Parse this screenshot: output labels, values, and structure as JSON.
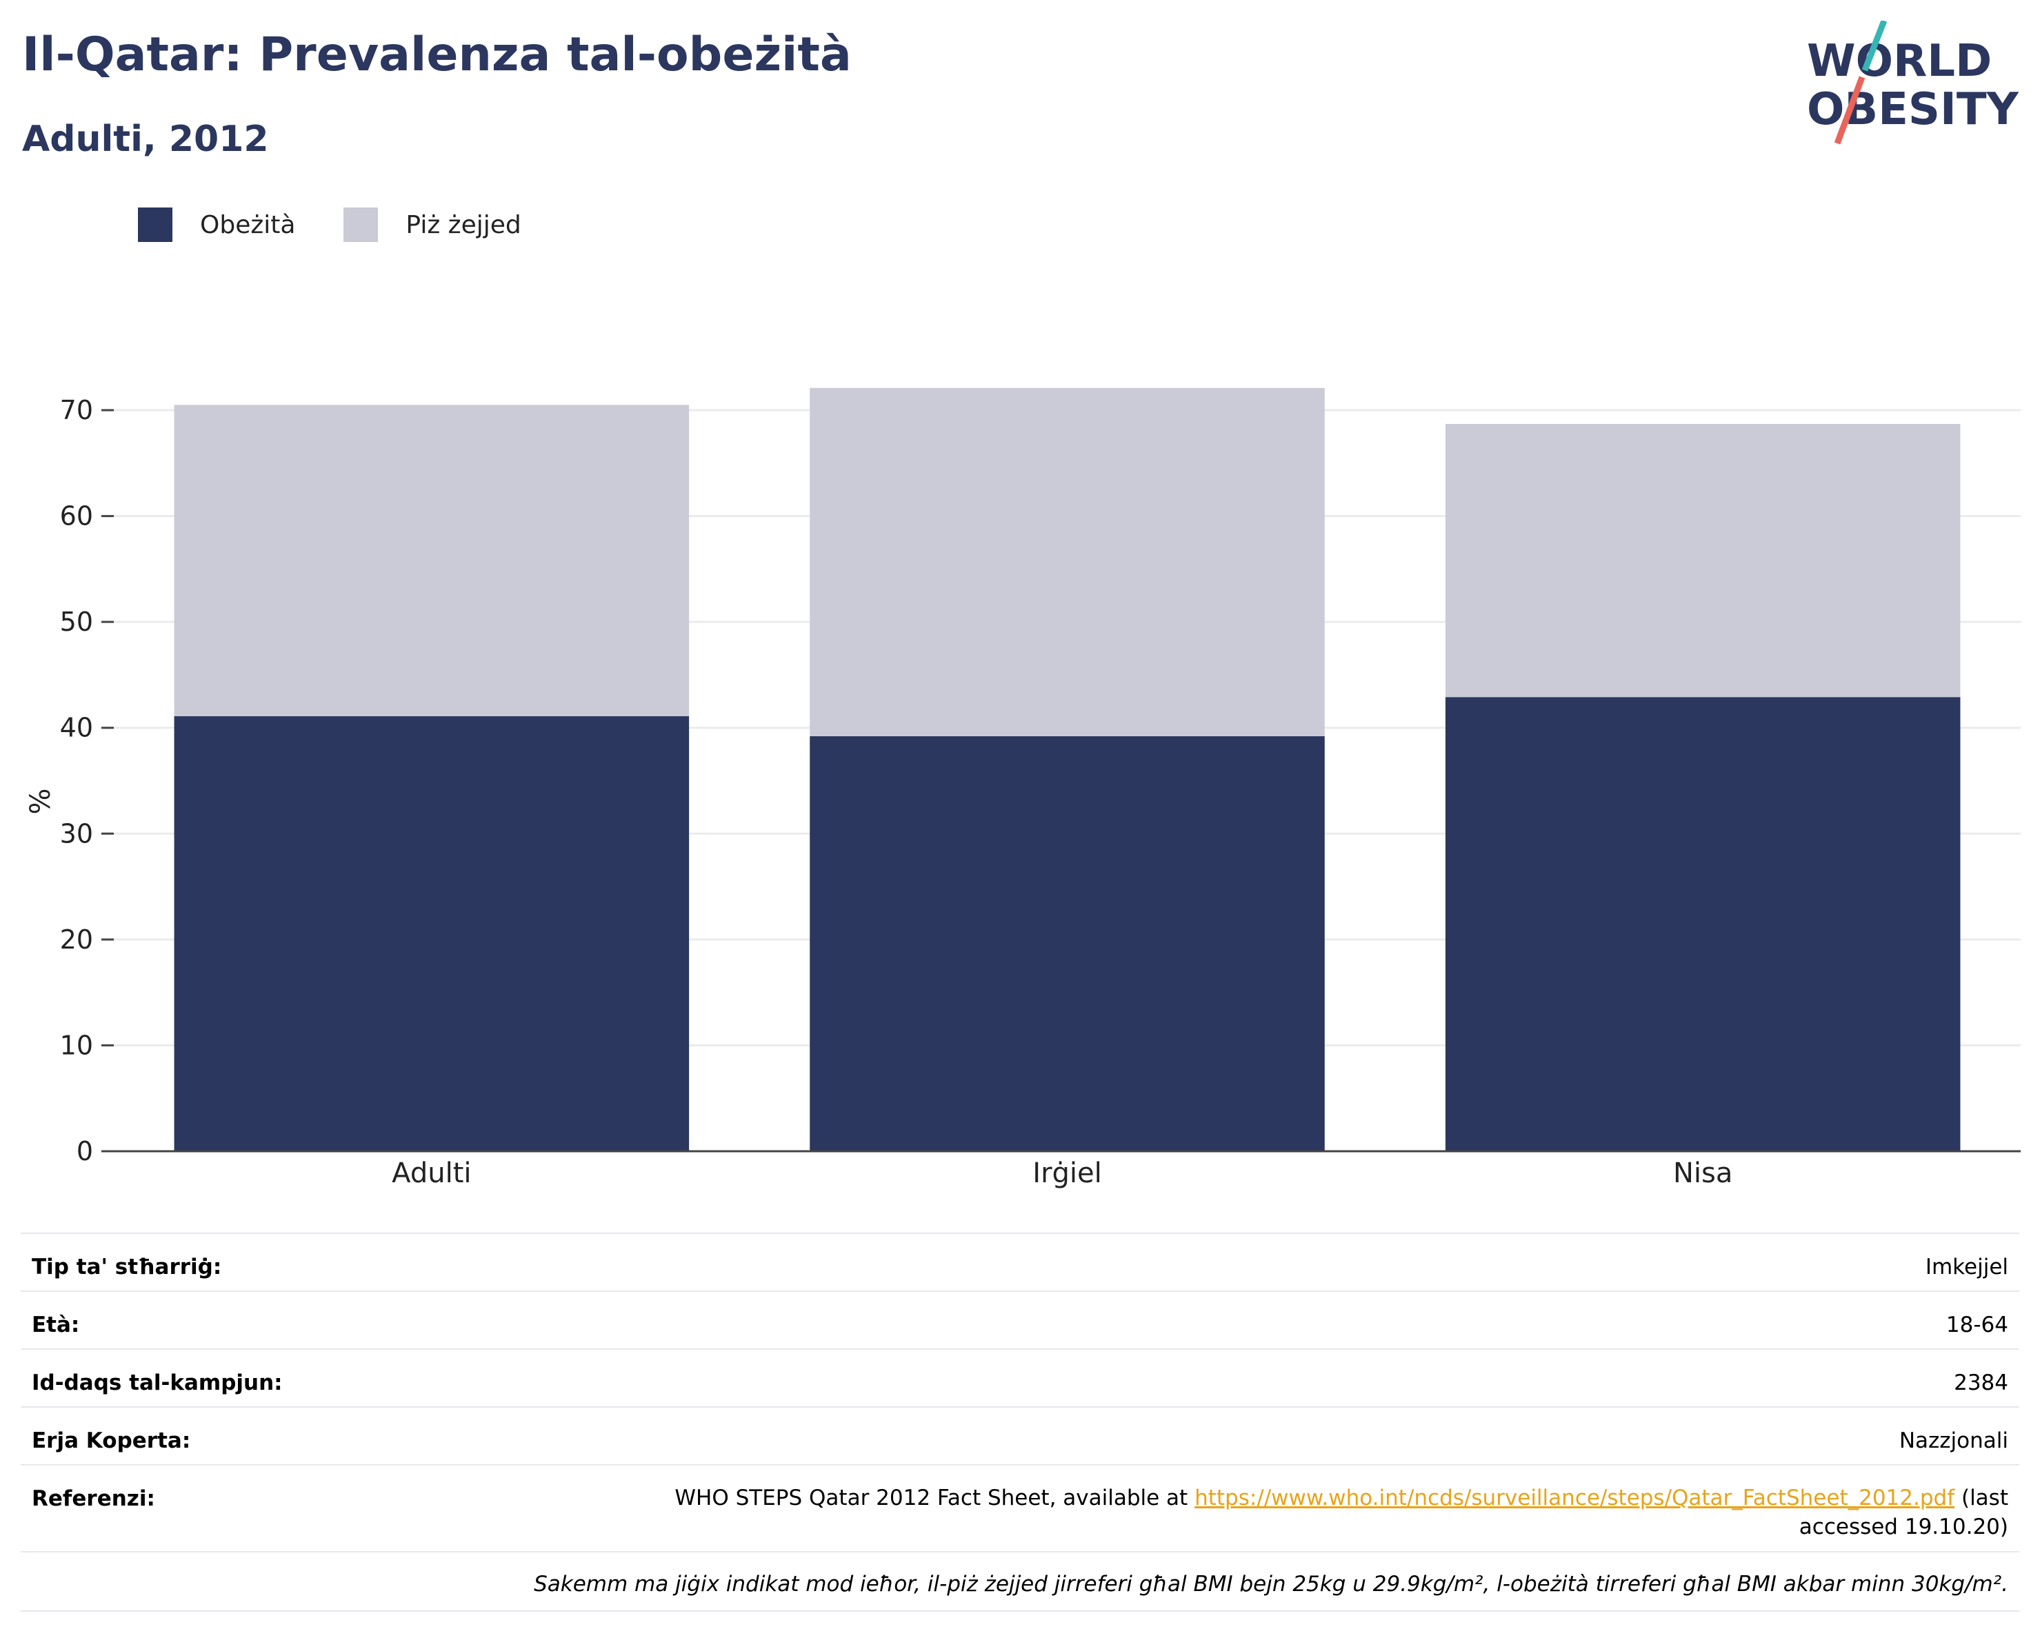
{
  "header": {
    "title": "Il-Qatar: Prevalenza tal-obeżità",
    "subtitle": "Adulti, 2012"
  },
  "logo": {
    "line1": "WORLD",
    "line2": "OBESITY",
    "colors": {
      "text": "#2b375f",
      "slash_top": "#35b6b4",
      "slash_bottom": "#e9645a"
    }
  },
  "legend": {
    "items": [
      {
        "label": "Obeżità",
        "color": "#2b375f"
      },
      {
        "label": "Piż żejjed",
        "color": "#cacbd6"
      }
    ]
  },
  "chart_data": {
    "type": "bar",
    "stacked": true,
    "categories": [
      "Adulti",
      "Irġiel",
      "Nisa"
    ],
    "series": [
      {
        "name": "Obeżità",
        "color": "#2b375f",
        "values": [
          41.1,
          39.2,
          42.9
        ]
      },
      {
        "name": "Piż żejjed",
        "color": "#cacbd6",
        "values": [
          29.4,
          32.9,
          25.8
        ]
      }
    ],
    "ylabel": "%",
    "ylim": [
      0,
      70
    ],
    "yticks": [
      0,
      10,
      20,
      30,
      40,
      50,
      60,
      70
    ],
    "grid": true,
    "legend_position": "top-left"
  },
  "info": {
    "rows": [
      {
        "label": "Tip ta' stħarriġ:",
        "value": "Imkejjel"
      },
      {
        "label": "Età:",
        "value": "18-64"
      },
      {
        "label": "Id-daqs tal-kampjun:",
        "value": "2384"
      },
      {
        "label": "Erja Koperta:",
        "value": "Nazzjonali"
      }
    ],
    "reference": {
      "label": "Referenzi:",
      "text_before": "WHO STEPS Qatar 2012 Fact Sheet, available at ",
      "link": "https://www.who.int/ncds/surveillance/steps/Qatar_FactSheet_2012.pdf",
      "text_after": " (last accessed 19.10.20)"
    },
    "note": "Sakemm ma jiġix indikat mod ieħor, il-piż żejjed jirreferi għal BMI bejn 25kg u 29.9kg/m², l-obeżità tirreferi għal BMI akbar minn 30kg/m²."
  }
}
